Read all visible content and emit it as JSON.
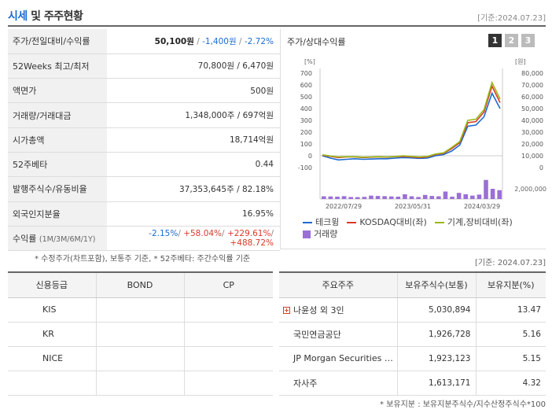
{
  "header": {
    "title_accent": "시세",
    "title_rest": " 및 주주현황",
    "date": "[기준:2024.07.23]"
  },
  "info": {
    "price_label": "주가/전일대비/수익률",
    "price": "50,100원",
    "change": "-1,400원",
    "change_pct": "-2.72%",
    "w52_label": "52Weeks 최고/최저",
    "w52": "70,800원 / 6,470원",
    "par_label": "액면가",
    "par": "500원",
    "volume_label": "거래량/거래대금",
    "volume": "1,348,000주 / 697억원",
    "mcap_label": "시가총액",
    "mcap": "18,714억원",
    "beta_label": "52주베타",
    "beta": "0.44",
    "shares_label": "발행주식수/유동비율",
    "shares": "37,353,645주 / 82.18%",
    "foreign_label": "외국인지분율",
    "foreign": "16.95%",
    "return_label": "수익률",
    "return_periods": "(1M/3M/6M/1Y)",
    "return_1m": "-2.15%",
    "return_3m": "+58.04%",
    "return_6m": "+229.61%",
    "return_1y": "+488.72%",
    "sep": "/"
  },
  "note_left": "* 수정주가(차트포함), 보통주 기준, * 52주베타: 주간수익률 기준",
  "chart_panel": {
    "title": "주가/상대수익률",
    "pages": [
      "1",
      "2",
      "3"
    ],
    "note_date": "[기준: 2024.07.23]"
  },
  "chart_data": {
    "type": "line",
    "left_unit": "[%]",
    "right_unit": "[원]",
    "left_ticks": [
      "700",
      "600",
      "500",
      "400",
      "300",
      "200",
      "100",
      "0",
      "-100"
    ],
    "right_ticks": [
      "80,000",
      "70,000",
      "60,000",
      "50,000",
      "40,000",
      "30,000",
      "20,000",
      "10,000",
      "0"
    ],
    "volume_tick": "2,000,000",
    "x_labels": [
      "2022/07/29",
      "2023/05/31",
      "2024/03/29"
    ],
    "ylim_left": [
      -100,
      700
    ],
    "series": [
      {
        "name": "테크윙",
        "color": "#1c6bd1",
        "values": [
          0,
          -20,
          -35,
          -30,
          -25,
          -30,
          -28,
          -25,
          -25,
          -20,
          -15,
          -18,
          -22,
          -20,
          0,
          10,
          40,
          90,
          250,
          260,
          330,
          530,
          400
        ]
      },
      {
        "name": "KOSDAQ대비(좌)",
        "color": "#d93a2b",
        "values": [
          5,
          -5,
          -15,
          -10,
          -10,
          -15,
          -12,
          -10,
          -12,
          -8,
          -5,
          -10,
          -15,
          -10,
          10,
          20,
          60,
          110,
          280,
          290,
          370,
          590,
          450
        ]
      },
      {
        "name": "기계,장비대비(좌)",
        "color": "#9ab818",
        "values": [
          8,
          -2,
          -10,
          -8,
          -8,
          -12,
          -10,
          -8,
          -10,
          -6,
          0,
          -5,
          -10,
          -5,
          15,
          25,
          70,
          120,
          300,
          310,
          390,
          620,
          480
        ]
      }
    ],
    "volume": {
      "name": "거래량",
      "color": "#9b6fd6",
      "max": 3000000,
      "values": [
        400000,
        380000,
        350000,
        420000,
        300000,
        280000,
        320000,
        500000,
        450000,
        420000,
        380000,
        350000,
        700000,
        400000,
        300000,
        600000,
        450000,
        400000,
        1100000,
        350000,
        900000,
        700000,
        500000,
        650000,
        2800000,
        1500000,
        1300000
      ]
    }
  },
  "credit": {
    "headers": [
      "신용등급",
      "BOND",
      "CP"
    ],
    "rows": [
      [
        "KIS",
        "",
        ""
      ],
      [
        "KR",
        "",
        ""
      ],
      [
        "NICE",
        "",
        ""
      ],
      [
        "",
        "",
        ""
      ]
    ]
  },
  "holders": {
    "headers": [
      "주요주주",
      "보유주식수(보통)",
      "보유지분(%)"
    ],
    "rows": [
      {
        "name": "나윤성 외 3인",
        "shares": "5,030,894",
        "pct": "13.47"
      },
      {
        "name": "국민연금공단",
        "shares": "1,926,728",
        "pct": "5.16"
      },
      {
        "name": "JP Morgan Securities …",
        "shares": "1,923,123",
        "pct": "5.15"
      },
      {
        "name": "자사주",
        "shares": "1,613,171",
        "pct": "4.32"
      }
    ],
    "plus_icon": "+",
    "note": "* 보유지분 : 보유지분주식수/지수산정주식수*100"
  }
}
